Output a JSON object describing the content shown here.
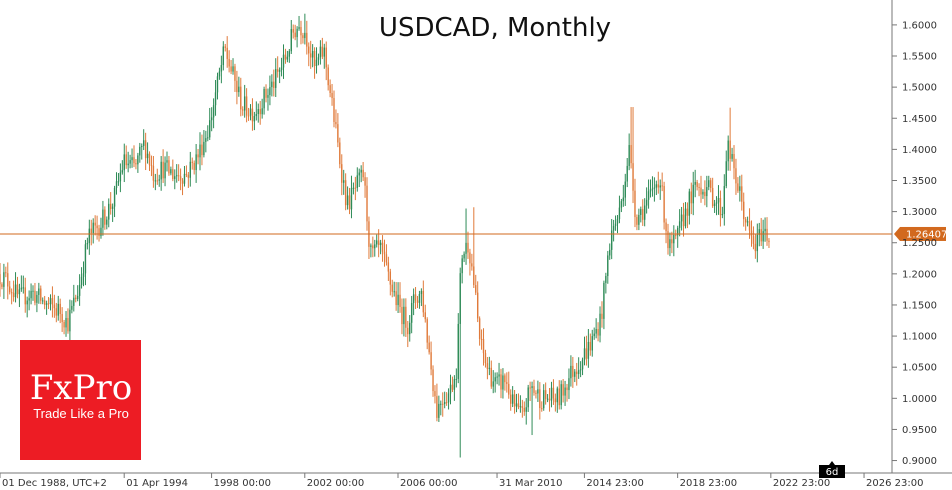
{
  "chart_data": {
    "type": "candlestick",
    "title": "USDCAD, Monthly",
    "ylim": [
      0.88,
      1.64
    ],
    "x_range": [
      1988.92,
      2027.2
    ],
    "y_ticks": [
      "0.9000",
      "0.9500",
      "1.0000",
      "1.0500",
      "1.1000",
      "1.1500",
      "1.2000",
      "1.2500",
      "1.3000",
      "1.3500",
      "1.4000",
      "1.4500",
      "1.5000",
      "1.5500",
      "1.6000"
    ],
    "y_tick_values": [
      0.9,
      0.95,
      1.0,
      1.05,
      1.1,
      1.15,
      1.2,
      1.25,
      1.3,
      1.35,
      1.4,
      1.45,
      1.5,
      1.55,
      1.6
    ],
    "x_ticks": [
      "01 Dec 1988, UTC+2",
      "01 Apr 1994",
      "1998 00:00",
      "2002 00:00",
      "2006 00:00",
      "31 Mar 2010",
      "2014 23:00",
      "2018 23:00",
      "2022 23:00",
      "2026 23:00"
    ],
    "x_tick_values": [
      1988.92,
      1994.25,
      1998.0,
      2002.0,
      2006.0,
      2010.25,
      2014.0,
      2018.0,
      2022.0,
      2026.0
    ],
    "current_price": 1.26407,
    "current_price_label": "1.26407",
    "timeframe_badge": "6d",
    "colors": {
      "up": "#2e8b57",
      "down": "#e07a3a",
      "price_line": "#d2691e"
    },
    "anchors": [
      [
        1988.9,
        1.2
      ],
      [
        1989.3,
        1.19
      ],
      [
        1989.8,
        1.16
      ],
      [
        1990.4,
        1.17
      ],
      [
        1991.0,
        1.15
      ],
      [
        1991.6,
        1.14
      ],
      [
        1991.9,
        1.12
      ],
      [
        1992.4,
        1.18
      ],
      [
        1992.8,
        1.26
      ],
      [
        1993.3,
        1.28
      ],
      [
        1993.9,
        1.32
      ],
      [
        1994.3,
        1.38
      ],
      [
        1994.8,
        1.37
      ],
      [
        1995.2,
        1.41
      ],
      [
        1995.6,
        1.36
      ],
      [
        1996.0,
        1.37
      ],
      [
        1996.5,
        1.36
      ],
      [
        1997.0,
        1.36
      ],
      [
        1997.5,
        1.39
      ],
      [
        1998.0,
        1.44
      ],
      [
        1998.2,
        1.48
      ],
      [
        1998.65,
        1.56
      ],
      [
        1998.9,
        1.53
      ],
      [
        1999.4,
        1.47
      ],
      [
        1999.9,
        1.46
      ],
      [
        2000.3,
        1.48
      ],
      [
        2000.8,
        1.51
      ],
      [
        2001.3,
        1.55
      ],
      [
        2001.6,
        1.59
      ],
      [
        2001.85,
        1.6
      ],
      [
        2002.1,
        1.59
      ],
      [
        2002.5,
        1.53
      ],
      [
        2002.9,
        1.56
      ],
      [
        2003.3,
        1.46
      ],
      [
        2003.6,
        1.38
      ],
      [
        2003.9,
        1.31
      ],
      [
        2004.3,
        1.34
      ],
      [
        2004.6,
        1.36
      ],
      [
        2004.9,
        1.23
      ],
      [
        2005.3,
        1.24
      ],
      [
        2005.8,
        1.18
      ],
      [
        2006.2,
        1.14
      ],
      [
        2006.5,
        1.12
      ],
      [
        2006.8,
        1.16
      ],
      [
        2007.1,
        1.17
      ],
      [
        2007.4,
        1.08
      ],
      [
        2007.75,
        0.98
      ],
      [
        2007.95,
        1.0
      ],
      [
        2008.3,
        1.01
      ],
      [
        2008.6,
        1.05
      ],
      [
        2008.8,
        1.23
      ],
      [
        2009.1,
        1.25
      ],
      [
        2009.3,
        1.2
      ],
      [
        2009.6,
        1.09
      ],
      [
        2009.9,
        1.05
      ],
      [
        2010.3,
        1.02
      ],
      [
        2010.7,
        1.03
      ],
      [
        2011.0,
        0.99
      ],
      [
        2011.4,
        0.97
      ],
      [
        2011.8,
        1.02
      ],
      [
        2012.2,
        1.0
      ],
      [
        2012.6,
        1.0
      ],
      [
        2013.0,
        1.0
      ],
      [
        2013.5,
        1.04
      ],
      [
        2013.9,
        1.06
      ],
      [
        2014.4,
        1.09
      ],
      [
        2014.8,
        1.13
      ],
      [
        2015.2,
        1.26
      ],
      [
        2015.6,
        1.3
      ],
      [
        2016.0,
        1.4
      ],
      [
        2016.3,
        1.29
      ],
      [
        2016.7,
        1.31
      ],
      [
        2017.0,
        1.33
      ],
      [
        2017.3,
        1.36
      ],
      [
        2017.7,
        1.24
      ],
      [
        2018.0,
        1.25
      ],
      [
        2018.5,
        1.31
      ],
      [
        2018.9,
        1.34
      ],
      [
        2019.3,
        1.34
      ],
      [
        2019.7,
        1.32
      ],
      [
        2020.0,
        1.3
      ],
      [
        2020.2,
        1.41
      ],
      [
        2020.4,
        1.38
      ],
      [
        2020.8,
        1.32
      ],
      [
        2021.1,
        1.27
      ],
      [
        2021.4,
        1.24
      ],
      [
        2021.7,
        1.27
      ],
      [
        2022.0,
        1.26
      ]
    ],
    "spikes": [
      [
        2016.05,
        1.468
      ],
      [
        2020.25,
        1.467
      ],
      [
        2008.65,
        0.905
      ],
      [
        2008.95,
        1.305
      ],
      [
        2009.25,
        1.307
      ],
      [
        2002.0,
        1.618
      ],
      [
        1998.7,
        1.582
      ],
      [
        2011.75,
        0.941
      ]
    ]
  }
}
